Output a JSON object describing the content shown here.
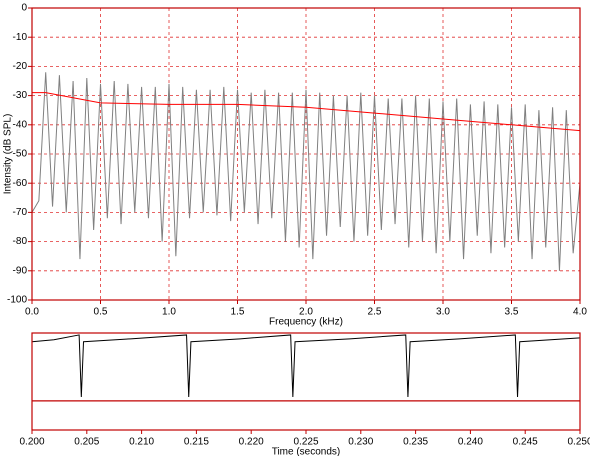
{
  "chart_data": [
    {
      "type": "line",
      "xlabel": "Frequency (kHz)",
      "ylabel": "Intensity (dB SPL)",
      "xlim": [
        0,
        4
      ],
      "ylim": [
        -100,
        0
      ],
      "grid": true,
      "xticks": [
        {
          "value": 0,
          "label": "0.0"
        },
        0.5,
        {
          "value": 1,
          "label": "1.0"
        },
        1.5,
        {
          "value": 2,
          "label": "2.0"
        },
        2.5,
        {
          "value": 3,
          "label": "3.0"
        },
        3.5,
        {
          "value": 4,
          "label": "4.0"
        }
      ],
      "yticks": [
        0,
        -10,
        -20,
        -30,
        -40,
        -50,
        -60,
        -70,
        -80,
        -90,
        -100
      ],
      "series": [
        {
          "color": "#808080",
          "x": [
            0,
            0.05,
            0.1,
            0.15,
            0.2,
            0.25,
            0.3,
            0.35,
            0.4,
            0.45,
            0.5,
            0.55,
            0.6,
            0.65,
            0.7,
            0.75,
            0.8,
            0.85,
            0.9,
            0.95,
            1,
            1.05,
            1.1,
            1.15,
            1.2,
            1.25,
            1.3,
            1.35,
            1.4,
            1.45,
            1.5,
            1.55,
            1.6,
            1.65,
            1.7,
            1.75,
            1.8,
            1.85,
            1.9,
            1.95,
            2,
            2.05,
            2.1,
            2.15,
            2.2,
            2.25,
            2.3,
            2.35,
            2.4,
            2.45,
            2.5,
            2.55,
            2.6,
            2.65,
            2.7,
            2.75,
            2.8,
            2.85,
            2.9,
            2.95,
            3,
            3.05,
            3.1,
            3.15,
            3.2,
            3.25,
            3.3,
            3.35,
            3.4,
            3.45,
            3.5,
            3.55,
            3.6,
            3.65,
            3.7,
            3.75,
            3.8,
            3.85,
            3.9,
            3.95,
            4
          ],
          "values": [
            -70,
            -66,
            -22,
            -68,
            -23,
            -70,
            -25,
            -86,
            -24,
            -76,
            -26,
            -72,
            -25,
            -74,
            -26,
            -70,
            -27,
            -72,
            -27,
            -80,
            -26,
            -85,
            -27,
            -72,
            -28,
            -70,
            -28,
            -71,
            -27,
            -73,
            -28,
            -70,
            -29,
            -74,
            -28,
            -72,
            -29,
            -80,
            -29,
            -82,
            -28,
            -86,
            -29,
            -78,
            -30,
            -75,
            -30,
            -80,
            -29,
            -78,
            -30,
            -76,
            -31,
            -74,
            -31,
            -82,
            -30,
            -80,
            -31,
            -84,
            -32,
            -80,
            -31,
            -86,
            -33,
            -78,
            -32,
            -84,
            -33,
            -82,
            -34,
            -80,
            -33,
            -86,
            -35,
            -82,
            -34,
            -90,
            -35,
            -84,
            -60
          ]
        },
        {
          "color": "#ff0000",
          "x": [
            0,
            0.1,
            0.5,
            1,
            1.5,
            2,
            2.5,
            3,
            3.5,
            4
          ],
          "values": [
            -29,
            -29,
            -32.5,
            -33,
            -33,
            -34,
            -36,
            -38,
            -40,
            -42
          ]
        }
      ]
    },
    {
      "type": "line",
      "xlabel": "Time (seconds)",
      "xlim": [
        0.2,
        0.25
      ],
      "ylim": [
        0,
        100
      ],
      "grid": false,
      "reference_line": 30,
      "xticks": [
        {
          "value": 0.2,
          "label": "0.200"
        },
        0.205,
        {
          "value": 0.21,
          "label": "0.210"
        },
        0.215,
        {
          "value": 0.22,
          "label": "0.220"
        },
        0.225,
        {
          "value": 0.23,
          "label": "0.230"
        },
        0.235,
        {
          "value": 0.24,
          "label": "0.240"
        },
        0.245,
        {
          "value": 0.25,
          "label": "0.250"
        }
      ],
      "series": [
        {
          "color": "#000000",
          "x": [
            0.2,
            0.202,
            0.2043,
            0.2045,
            0.2047,
            0.209,
            0.2141,
            0.2143,
            0.2145,
            0.219,
            0.2236,
            0.2238,
            0.224,
            0.229,
            0.2341,
            0.2343,
            0.2345,
            0.239,
            0.2441,
            0.2443,
            0.2445,
            0.25
          ],
          "values": [
            91,
            93,
            98,
            34,
            91,
            94,
            98,
            34,
            91,
            94,
            98,
            34,
            91,
            94,
            98,
            34,
            91,
            94,
            98,
            34,
            91,
            95
          ]
        }
      ]
    }
  ]
}
